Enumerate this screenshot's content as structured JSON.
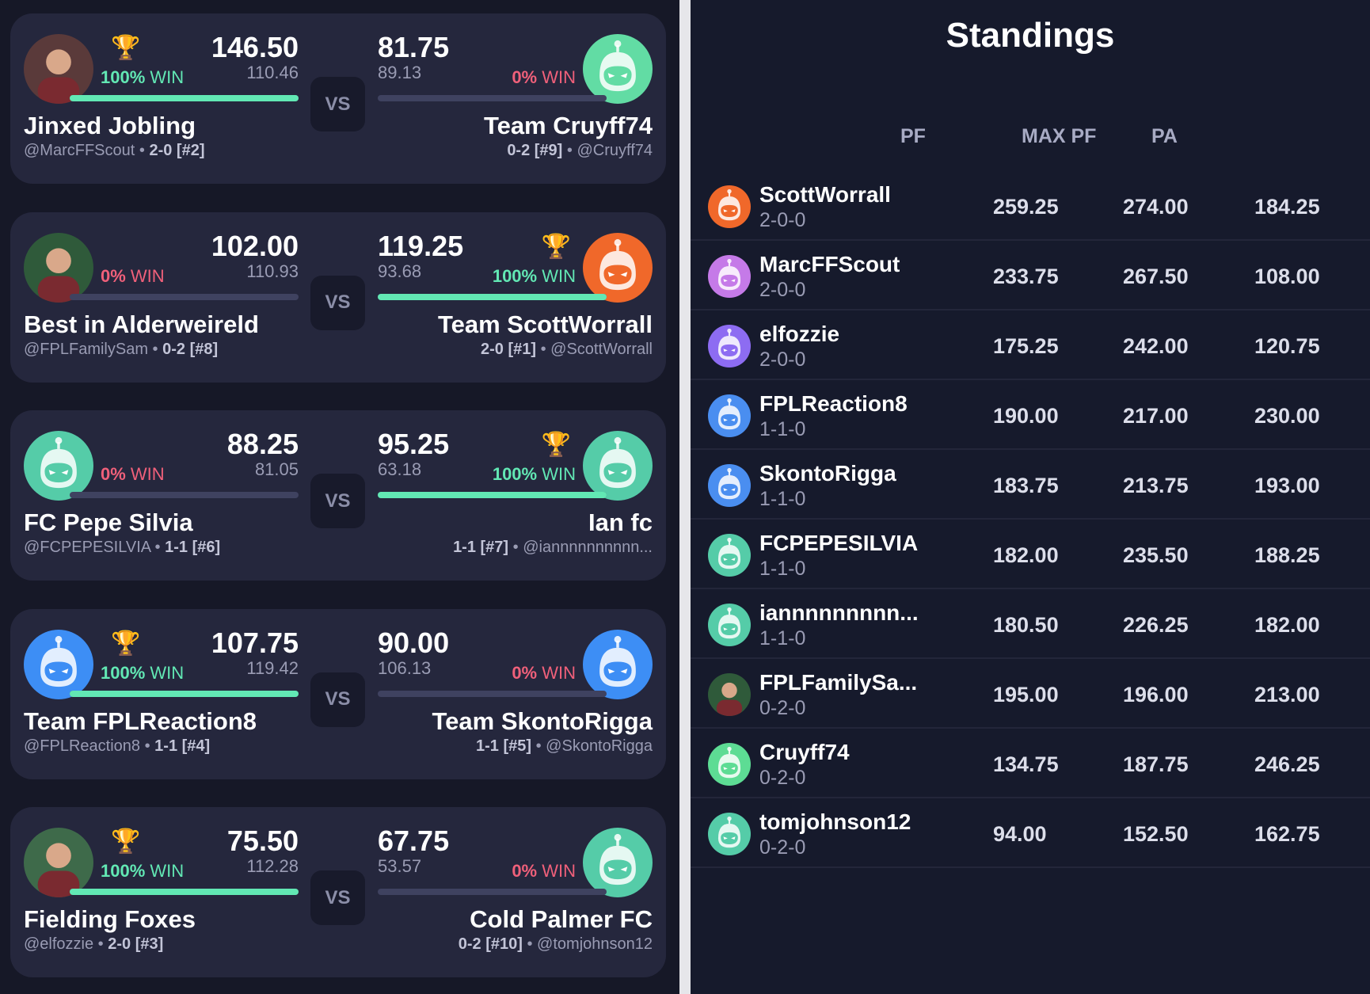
{
  "colors": {
    "win": "#62e8b4",
    "loss": "#f0607a",
    "trophy": "#f5b820"
  },
  "matchups": [
    {
      "left": {
        "name": "Jinxed Jobling",
        "handle": "@MarcFFScout",
        "record": "2-0 [#2]",
        "score": "146.50",
        "projected": "110.46",
        "win_pct": "100%",
        "win_label": "WIN",
        "winner": true,
        "avatar": {
          "type": "photo",
          "color": "#5a3a3a"
        }
      },
      "right": {
        "name": "Team Cruyff74",
        "handle": "@Cruyff74",
        "record": "0-2 [#9]",
        "score": "81.75",
        "projected": "89.13",
        "win_pct": "0%",
        "win_label": "WIN",
        "winner": false,
        "avatar": {
          "type": "robot",
          "color": "#62dca4"
        }
      },
      "vs": "VS"
    },
    {
      "left": {
        "name": "Best in Alderweireld",
        "handle": "@FPLFamilySam",
        "record": "0-2 [#8]",
        "score": "102.00",
        "projected": "110.93",
        "win_pct": "0%",
        "win_label": "WIN",
        "winner": false,
        "avatar": {
          "type": "photo",
          "color": "#2f5a3a"
        }
      },
      "right": {
        "name": "Team ScottWorrall",
        "handle": "@ScottWorrall",
        "record": "2-0 [#1]",
        "score": "119.25",
        "projected": "93.68",
        "win_pct": "100%",
        "win_label": "WIN",
        "winner": true,
        "avatar": {
          "type": "robot",
          "color": "#f0682a"
        }
      },
      "vs": "VS"
    },
    {
      "left": {
        "name": "FC Pepe Silvia",
        "handle": "@FCPEPESILVIA",
        "record": "1-1 [#6]",
        "score": "88.25",
        "projected": "81.05",
        "win_pct": "0%",
        "win_label": "WIN",
        "winner": false,
        "avatar": {
          "type": "robot",
          "color": "#55cca8"
        }
      },
      "right": {
        "name": "Ian fc",
        "handle": "@iannnnnnnnnn...",
        "record": "1-1 [#7]",
        "score": "95.25",
        "projected": "63.18",
        "win_pct": "100%",
        "win_label": "WIN",
        "winner": true,
        "avatar": {
          "type": "robot",
          "color": "#55cca8"
        }
      },
      "vs": "VS"
    },
    {
      "left": {
        "name": "Team FPLReaction8",
        "handle": "@FPLReaction8",
        "record": "1-1 [#4]",
        "score": "107.75",
        "projected": "119.42",
        "win_pct": "100%",
        "win_label": "WIN",
        "winner": true,
        "avatar": {
          "type": "robot",
          "color": "#3d8ef5"
        }
      },
      "right": {
        "name": "Team SkontoRigga",
        "handle": "@SkontoRigga",
        "record": "1-1 [#5]",
        "score": "90.00",
        "projected": "106.13",
        "win_pct": "0%",
        "win_label": "WIN",
        "winner": false,
        "avatar": {
          "type": "robot",
          "color": "#3d8ef5"
        }
      },
      "vs": "VS"
    },
    {
      "left": {
        "name": "Fielding Foxes",
        "handle": "@elfozzie",
        "record": "2-0 [#3]",
        "score": "75.50",
        "projected": "112.28",
        "win_pct": "100%",
        "win_label": "WIN",
        "winner": true,
        "avatar": {
          "type": "photo",
          "color": "#3e6a4a"
        }
      },
      "right": {
        "name": "Cold Palmer FC",
        "handle": "@tomjohnson12",
        "record": "0-2 [#10]",
        "score": "67.75",
        "projected": "53.57",
        "win_pct": "0%",
        "win_label": "WIN",
        "winner": false,
        "avatar": {
          "type": "robot",
          "color": "#55cca8"
        }
      },
      "vs": "VS"
    }
  ],
  "standings": {
    "title": "Standings",
    "columns": [
      "PF",
      "MAX PF",
      "PA"
    ],
    "rows": [
      {
        "name": "ScottWorrall",
        "record": "2-0-0",
        "pf": "259.25",
        "max_pf": "274.00",
        "pa": "184.25",
        "avatar": {
          "type": "robot",
          "color": "#f0682a"
        }
      },
      {
        "name": "MarcFFScout",
        "record": "2-0-0",
        "pf": "233.75",
        "max_pf": "267.50",
        "pa": "108.00",
        "avatar": {
          "type": "robot",
          "color": "#c57ae8"
        }
      },
      {
        "name": "elfozzie",
        "record": "2-0-0",
        "pf": "175.25",
        "max_pf": "242.00",
        "pa": "120.75",
        "avatar": {
          "type": "robot",
          "color": "#8d6cf2"
        }
      },
      {
        "name": "FPLReaction8",
        "record": "1-1-0",
        "pf": "190.00",
        "max_pf": "217.00",
        "pa": "230.00",
        "avatar": {
          "type": "robot",
          "color": "#4a8ef0"
        }
      },
      {
        "name": "SkontoRigga",
        "record": "1-1-0",
        "pf": "183.75",
        "max_pf": "213.75",
        "pa": "193.00",
        "avatar": {
          "type": "robot",
          "color": "#4a8ef0"
        }
      },
      {
        "name": "FCPEPESILVIA",
        "record": "1-1-0",
        "pf": "182.00",
        "max_pf": "235.50",
        "pa": "188.25",
        "avatar": {
          "type": "robot",
          "color": "#55cca8"
        }
      },
      {
        "name": "iannnnnnnnn...",
        "record": "1-1-0",
        "pf": "180.50",
        "max_pf": "226.25",
        "pa": "182.00",
        "avatar": {
          "type": "robot",
          "color": "#55cca8"
        }
      },
      {
        "name": "FPLFamilySa...",
        "record": "0-2-0",
        "pf": "195.00",
        "max_pf": "196.00",
        "pa": "213.00",
        "avatar": {
          "type": "photo",
          "color": "#2f5a3a"
        }
      },
      {
        "name": "Cruyff74",
        "record": "0-2-0",
        "pf": "134.75",
        "max_pf": "187.75",
        "pa": "246.25",
        "avatar": {
          "type": "robot",
          "color": "#5ddc94"
        }
      },
      {
        "name": "tomjohnson12",
        "record": "0-2-0",
        "pf": "94.00",
        "max_pf": "152.50",
        "pa": "162.75",
        "avatar": {
          "type": "robot",
          "color": "#55cca8"
        }
      }
    ]
  }
}
